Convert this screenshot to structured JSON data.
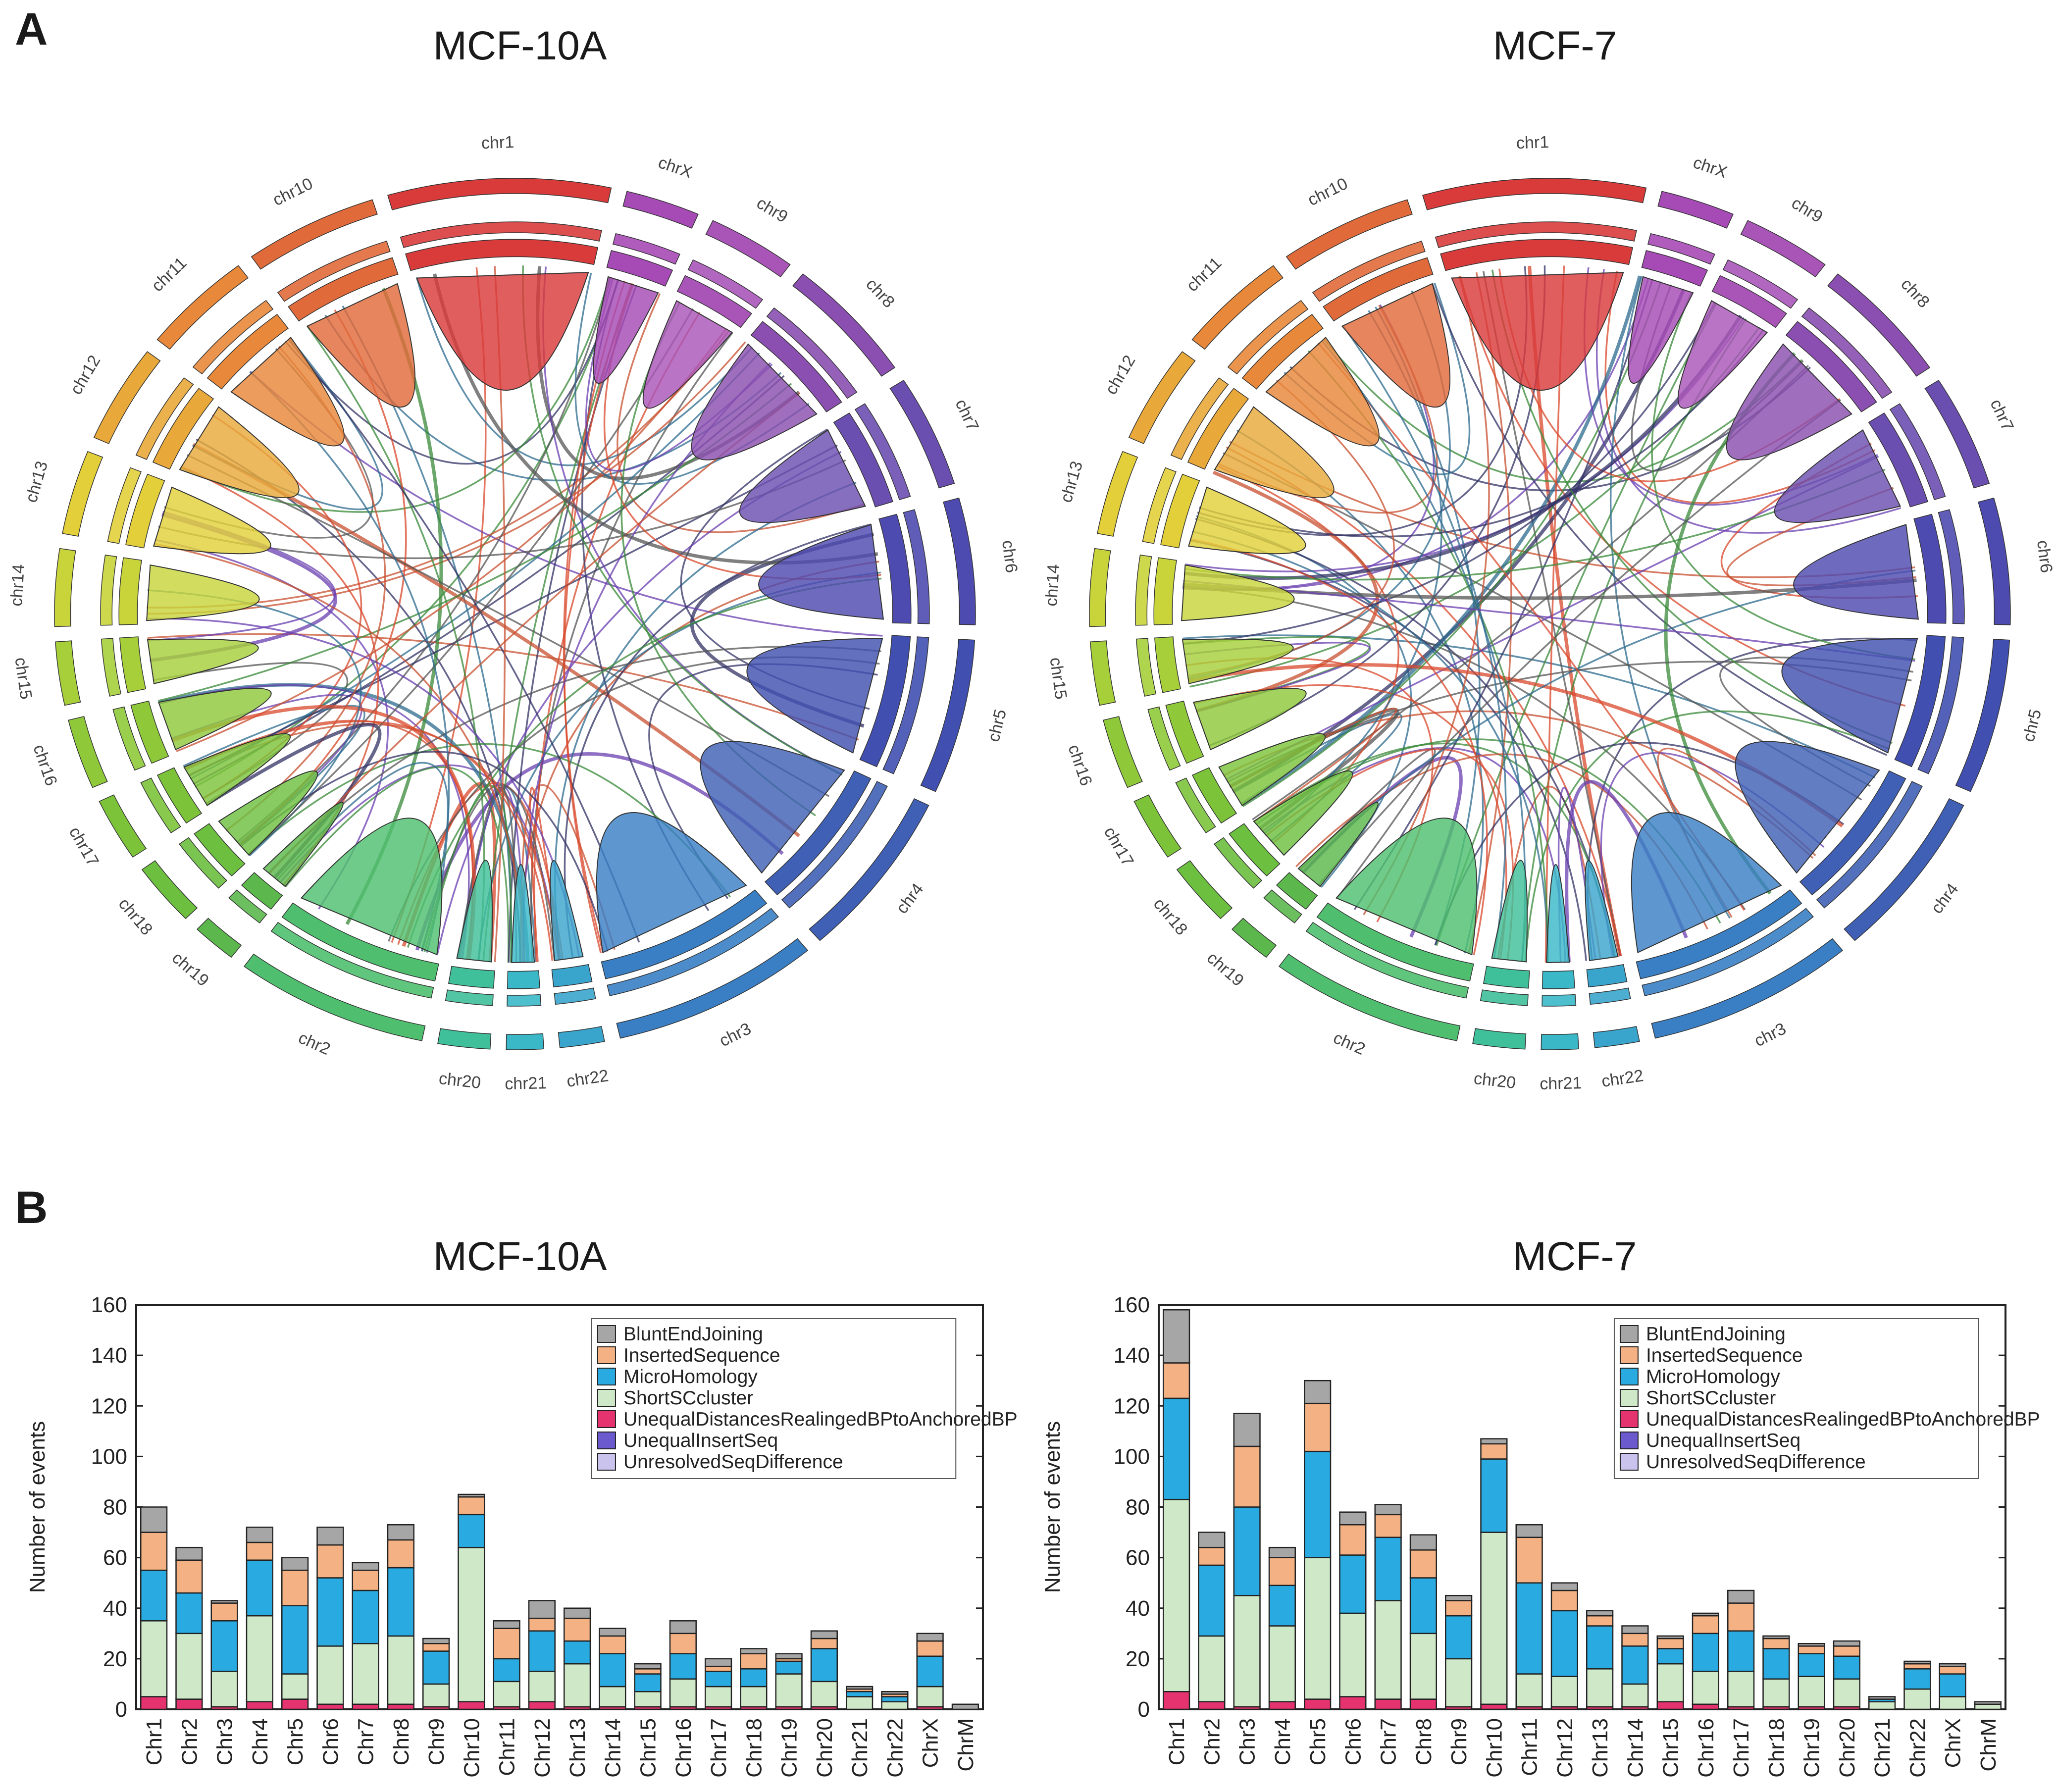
{
  "panels": {
    "a_label": "A",
    "b_label": "B"
  },
  "circos": [
    {
      "title": "MCF-10A",
      "chromosomes": [
        "chr1",
        "chrX",
        "chr9",
        "chr8",
        "chr7",
        "chr6",
        "chr5",
        "chr4",
        "chr3",
        "chr22",
        "chr21",
        "chr20",
        "chr2",
        "chr19",
        "chr18",
        "chr17",
        "chr16",
        "chr15",
        "chr14",
        "chr13",
        "chr12",
        "chr11",
        "chr10"
      ]
    },
    {
      "title": "MCF-7",
      "chromosomes": [
        "chr1",
        "chrX",
        "chr9",
        "chr8",
        "chr7",
        "chr6",
        "chr5",
        "chr4",
        "chr3",
        "chr22",
        "chr21",
        "chr20",
        "chr2",
        "chr19",
        "chr18",
        "chr17",
        "chr16",
        "chr15",
        "chr14",
        "chr13",
        "chr12",
        "chr11",
        "chr10"
      ]
    }
  ],
  "legend": {
    "items": [
      "BluntEndJoining",
      "InsertedSequence",
      "MicroHomology",
      "ShortSCcluster",
      "UnequalDistancesRealingedBPtoAnchoredBP",
      "UnequalInsertSeq",
      "UnresolvedSeqDifference"
    ],
    "colors": [
      "#a6a6a6",
      "#f4b183",
      "#29abe2",
      "#cfe8c8",
      "#e5336f",
      "#6a5acd",
      "#c9c3ee"
    ]
  },
  "chart_data": [
    {
      "type": "bar",
      "stacked": true,
      "title": "MCF-10A",
      "xlabel": "",
      "ylabel": "Number of events",
      "ylim": [
        0,
        160
      ],
      "yticks": [
        "0",
        "20",
        "40",
        "60",
        "80",
        "100",
        "120",
        "140",
        "160"
      ],
      "categories": [
        "Chr1",
        "Chr2",
        "Chr3",
        "Chr4",
        "Chr5",
        "Chr6",
        "Chr7",
        "Chr8",
        "Chr9",
        "Chr10",
        "Chr11",
        "Chr12",
        "Chr13",
        "Chr14",
        "Chr15",
        "Chr16",
        "Chr17",
        "Chr18",
        "Chr19",
        "Chr20",
        "Chr21",
        "Chr22",
        "ChrX",
        "ChrM"
      ],
      "series": [
        {
          "name": "UnequalDistancesRealingedBPtoAnchoredBP",
          "values": [
            5,
            4,
            1,
            3,
            4,
            2,
            2,
            2,
            1,
            3,
            1,
            3,
            1,
            1,
            1,
            1,
            1,
            1,
            1,
            1,
            0,
            0,
            1,
            0
          ]
        },
        {
          "name": "ShortSCcluster",
          "values": [
            30,
            26,
            14,
            34,
            10,
            23,
            24,
            27,
            9,
            61,
            10,
            12,
            17,
            8,
            6,
            11,
            8,
            8,
            13,
            10,
            5,
            3,
            8,
            0
          ]
        },
        {
          "name": "MicroHomology",
          "values": [
            20,
            16,
            20,
            22,
            27,
            27,
            21,
            27,
            13,
            13,
            9,
            16,
            9,
            13,
            7,
            10,
            6,
            7,
            5,
            13,
            2,
            2,
            12,
            0
          ]
        },
        {
          "name": "InsertedSequence",
          "values": [
            15,
            13,
            7,
            7,
            14,
            13,
            8,
            11,
            3,
            7,
            12,
            5,
            9,
            7,
            2,
            8,
            2,
            6,
            1,
            4,
            1,
            1,
            6,
            0
          ]
        },
        {
          "name": "BluntEndJoining",
          "values": [
            10,
            5,
            1,
            6,
            5,
            7,
            3,
            6,
            2,
            1,
            3,
            7,
            4,
            3,
            2,
            5,
            3,
            2,
            2,
            3,
            1,
            1,
            3,
            2
          ]
        }
      ]
    },
    {
      "type": "bar",
      "stacked": true,
      "title": "MCF-7",
      "xlabel": "",
      "ylabel": "Number of events",
      "ylim": [
        0,
        160
      ],
      "yticks": [
        "0",
        "20",
        "40",
        "60",
        "80",
        "100",
        "120",
        "140",
        "160"
      ],
      "categories": [
        "Chr1",
        "Chr2",
        "Chr3",
        "Chr4",
        "Chr5",
        "Chr6",
        "Chr7",
        "Chr8",
        "Chr9",
        "Chr10",
        "Chr11",
        "Chr12",
        "Chr13",
        "Chr14",
        "Chr15",
        "Chr16",
        "Chr17",
        "Chr18",
        "Chr19",
        "Chr20",
        "Chr21",
        "Chr22",
        "ChrX",
        "ChrM"
      ],
      "series": [
        {
          "name": "UnequalDistancesRealingedBPtoAnchoredBP",
          "values": [
            7,
            3,
            1,
            3,
            4,
            5,
            4,
            4,
            1,
            2,
            1,
            1,
            1,
            1,
            3,
            2,
            1,
            1,
            1,
            1,
            0,
            0,
            0,
            0
          ]
        },
        {
          "name": "ShortSCcluster",
          "values": [
            76,
            26,
            44,
            30,
            56,
            33,
            39,
            26,
            19,
            68,
            13,
            12,
            15,
            9,
            15,
            13,
            14,
            11,
            12,
            11,
            3,
            8,
            5,
            2
          ]
        },
        {
          "name": "MicroHomology",
          "values": [
            40,
            28,
            35,
            16,
            42,
            23,
            25,
            22,
            17,
            29,
            36,
            26,
            17,
            15,
            6,
            15,
            16,
            12,
            9,
            9,
            1,
            8,
            9,
            0
          ]
        },
        {
          "name": "InsertedSequence",
          "values": [
            14,
            7,
            24,
            11,
            19,
            12,
            9,
            11,
            6,
            6,
            18,
            8,
            4,
            5,
            4,
            7,
            11,
            4,
            3,
            4,
            0,
            2,
            3,
            0
          ]
        },
        {
          "name": "BluntEndJoining",
          "values": [
            21,
            6,
            13,
            4,
            9,
            5,
            4,
            6,
            2,
            2,
            5,
            3,
            2,
            3,
            1,
            1,
            5,
            1,
            1,
            2,
            1,
            1,
            1,
            1
          ]
        }
      ]
    }
  ]
}
